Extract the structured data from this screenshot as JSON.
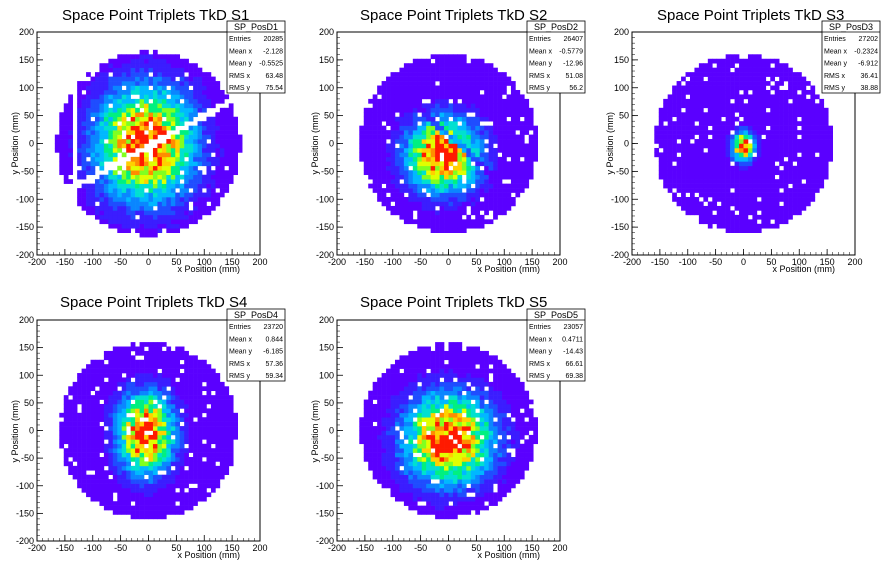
{
  "palette": [
    "#5a00ff",
    "#3b1dff",
    "#1f4dff",
    "#0a86ff",
    "#00b8ff",
    "#00e0d0",
    "#00f080",
    "#80ff20",
    "#e0ff00",
    "#ffd000",
    "#ff8c00",
    "#ff1a00"
  ],
  "chart_data": [
    {
      "type": "heatmap",
      "title": "Space Point Triplets TkD S1",
      "xlabel": "x Position (mm)",
      "ylabel": "y Position (mm)",
      "xlim": [
        -200,
        200
      ],
      "ylim": [
        -200,
        200
      ],
      "xticks": [
        -200,
        -150,
        -100,
        -50,
        0,
        50,
        100,
        150,
        200
      ],
      "yticks": [
        -200,
        -150,
        -100,
        -50,
        0,
        50,
        100,
        150,
        200
      ],
      "grid": false,
      "stats": {
        "name": "SP_PosD1",
        "rows": [
          [
            "Entries",
            "20285"
          ],
          [
            "Mean x",
            "-2.128"
          ],
          [
            "Mean y",
            "-0.5525"
          ],
          [
            "RMS x",
            "63.48"
          ],
          [
            "RMS y",
            "75.54"
          ]
        ]
      },
      "distribution": {
        "radius": 165,
        "center": [
          -5,
          0
        ],
        "sigma_x": 60,
        "sigma_y": 70,
        "slant_gap": true,
        "left_slit": true
      }
    },
    {
      "type": "heatmap",
      "title": "Space Point Triplets TkD S2",
      "xlabel": "x Position (mm)",
      "ylabel": "y Position (mm)",
      "xlim": [
        -200,
        200
      ],
      "ylim": [
        -200,
        200
      ],
      "xticks": [
        -200,
        -150,
        -100,
        -50,
        0,
        50,
        100,
        150,
        200
      ],
      "yticks": [
        -200,
        -150,
        -100,
        -50,
        0,
        50,
        100,
        150,
        200
      ],
      "grid": false,
      "stats": {
        "name": "SP_PosD2",
        "rows": [
          [
            "Entries",
            "26407"
          ],
          [
            "Mean x",
            "-0.5779"
          ],
          [
            "Mean y",
            "-12.96"
          ],
          [
            "RMS x",
            "51.08"
          ],
          [
            "RMS y",
            "56.2"
          ]
        ]
      },
      "distribution": {
        "radius": 160,
        "center": [
          -10,
          -20
        ],
        "sigma_x": 45,
        "sigma_y": 45,
        "diag_stripe": true
      }
    },
    {
      "type": "heatmap",
      "title": "Space Point Triplets TkD S3",
      "xlabel": "x Position (mm)",
      "ylabel": "y Position (mm)",
      "xlim": [
        -200,
        200
      ],
      "ylim": [
        -200,
        200
      ],
      "xticks": [
        -200,
        -150,
        -100,
        -50,
        0,
        50,
        100,
        150,
        200
      ],
      "yticks": [
        -200,
        -150,
        -100,
        -50,
        0,
        50,
        100,
        150,
        200
      ],
      "grid": false,
      "stats": {
        "name": "SP_PosD3",
        "rows": [
          [
            "Entries",
            "27202"
          ],
          [
            "Mean x",
            "-0.2324"
          ],
          [
            "Mean y",
            "-6.912"
          ],
          [
            "RMS x",
            "36.41"
          ],
          [
            "RMS y",
            "38.88"
          ]
        ]
      },
      "distribution": {
        "radius": 160,
        "center": [
          0,
          -5
        ],
        "sigma_x": 14,
        "sigma_y": 18,
        "floor": 1
      }
    },
    {
      "type": "heatmap",
      "title": "Space Point Triplets TkD S4",
      "xlabel": "x Position (mm)",
      "ylabel": "y Position (mm)",
      "xlim": [
        -200,
        200
      ],
      "ylim": [
        -200,
        200
      ],
      "xticks": [
        -200,
        -150,
        -100,
        -50,
        0,
        50,
        100,
        150,
        200
      ],
      "yticks": [
        -200,
        -150,
        -100,
        -50,
        0,
        50,
        100,
        150,
        200
      ],
      "grid": false,
      "stats": {
        "name": "SP_PosD4",
        "rows": [
          [
            "Entries",
            "23720"
          ],
          [
            "Mean x",
            "0.844"
          ],
          [
            "Mean y",
            "-6.185"
          ],
          [
            "RMS x",
            "57.36"
          ],
          [
            "RMS y",
            "59.34"
          ]
        ]
      },
      "distribution": {
        "radius": 160,
        "center": [
          -5,
          -5
        ],
        "sigma_x": 35,
        "sigma_y": 50
      }
    },
    {
      "type": "heatmap",
      "title": "Space Point Triplets TkD S5",
      "xlabel": "x Position (mm)",
      "ylabel": "y Position (mm)",
      "xlim": [
        -200,
        200
      ],
      "ylim": [
        -200,
        200
      ],
      "xticks": [
        -200,
        -150,
        -100,
        -50,
        0,
        50,
        100,
        150,
        200
      ],
      "yticks": [
        -200,
        -150,
        -100,
        -50,
        0,
        50,
        100,
        150,
        200
      ],
      "grid": false,
      "stats": {
        "name": "SP_PosD5",
        "rows": [
          [
            "Entries",
            "23057"
          ],
          [
            "Mean x",
            "0.4711"
          ],
          [
            "Mean y",
            "-14.43"
          ],
          [
            "RMS x",
            "66.61"
          ],
          [
            "RMS y",
            "69.38"
          ]
        ]
      },
      "distribution": {
        "radius": 158,
        "center": [
          0,
          -15
        ],
        "sigma_x": 55,
        "sigma_y": 55
      }
    }
  ]
}
